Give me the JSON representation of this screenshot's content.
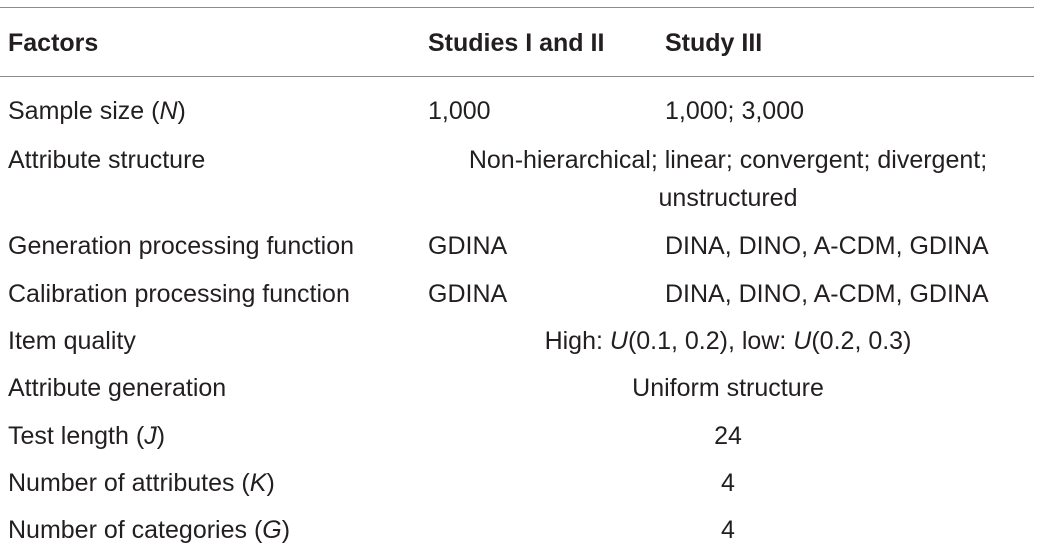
{
  "headers": {
    "col1": "Factors",
    "col2": "Studies I and II",
    "col3": "Study III"
  },
  "rows": [
    {
      "factor_pre": "Sample size (",
      "factor_sym": "N",
      "factor_post": ")",
      "studies_1_2": "1,000",
      "study_3": "1,000; 3,000"
    },
    {
      "factor": "Attribute structure",
      "spanning_line1": "Non-hierarchical; linear; convergent; divergent;",
      "spanning_line2": "unstructured"
    },
    {
      "factor": "Generation processing function",
      "studies_1_2": "GDINA",
      "study_3": "DINA, DINO, A-CDM, GDINA"
    },
    {
      "factor": "Calibration processing function",
      "studies_1_2": "GDINA",
      "study_3": "DINA, DINO, A-CDM, GDINA"
    },
    {
      "factor": "Item quality",
      "span_a": "High: ",
      "span_sym1": "U",
      "span_b": "(0.1, 0.2), low: ",
      "span_sym2": "U",
      "span_c": "(0.2, 0.3)"
    },
    {
      "factor": "Attribute generation",
      "spanning": "Uniform structure"
    },
    {
      "factor_pre": "Test length (",
      "factor_sym": "J",
      "factor_post": ")",
      "spanning": "24"
    },
    {
      "factor_pre": "Number of attributes (",
      "factor_sym": "K",
      "factor_post": ")",
      "spanning": "4"
    },
    {
      "factor_pre": "Number of categories (",
      "factor_sym": "G",
      "factor_post": ")",
      "spanning": "4"
    }
  ]
}
